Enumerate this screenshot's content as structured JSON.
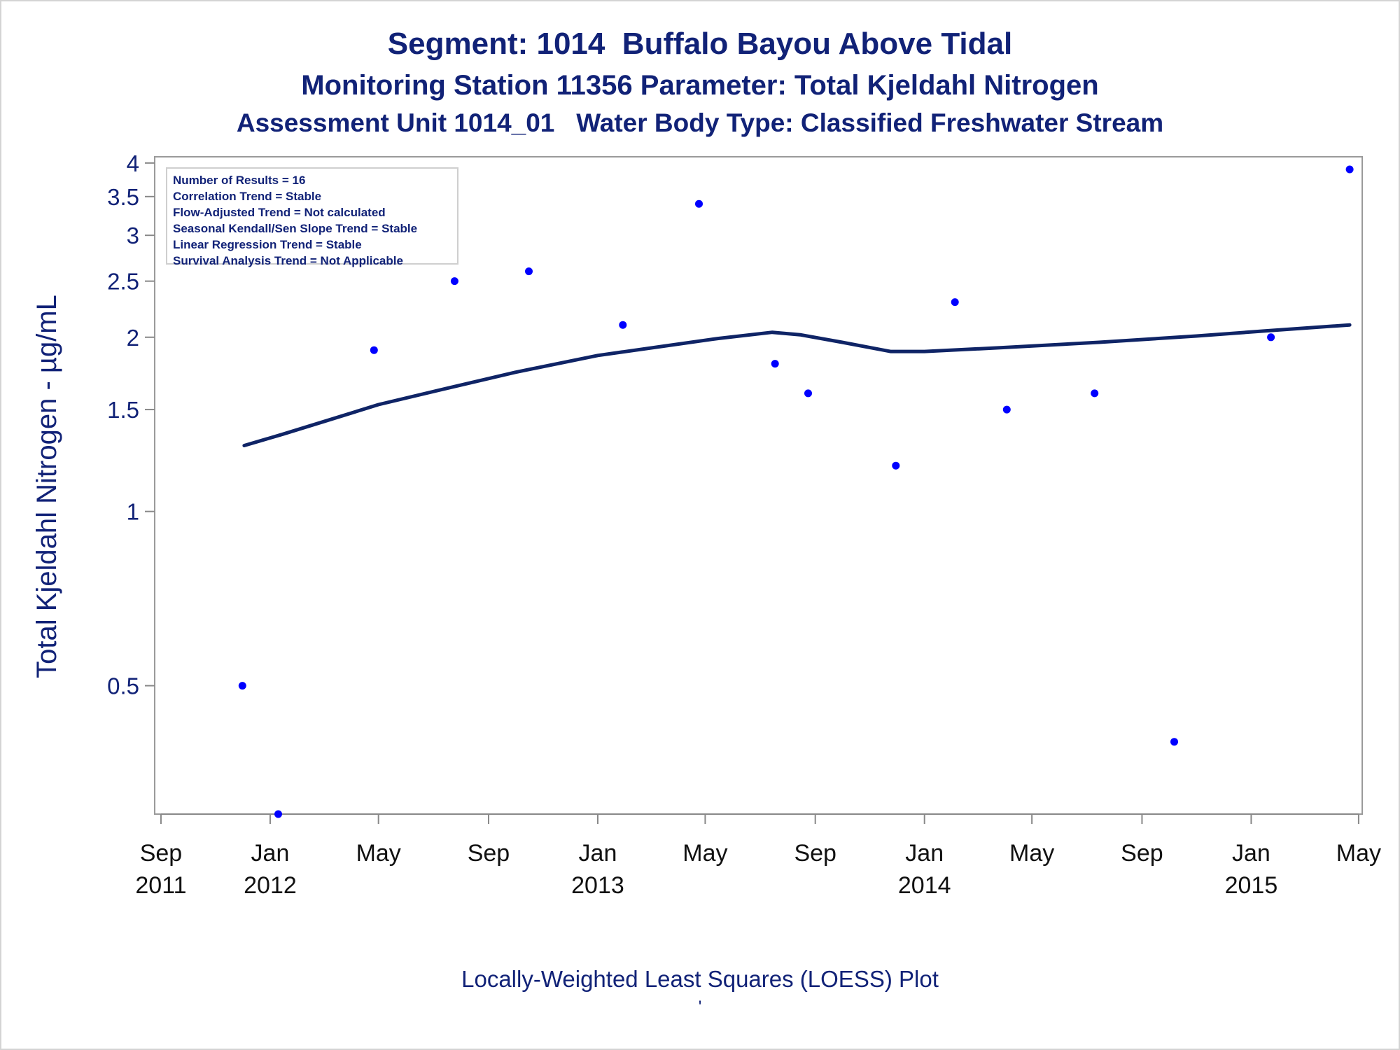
{
  "titles": {
    "line1": "Segment: 1014  Buffalo Bayou Above Tidal",
    "line2": "Monitoring Station 11356 Parameter: Total Kjeldahl Nitrogen",
    "line3": "Assessment Unit 1014_01   Water Body Type: Classified Freshwater Stream"
  },
  "stats_box": [
    "Number of Results = 16",
    "Correlation Trend = Stable",
    "Flow-Adjusted Trend = Not calculated",
    "Seasonal Kendall/Sen Slope Trend = Stable",
    "Linear Regression Trend = Stable",
    "Survival Analysis Trend = Not Applicable"
  ],
  "footnote": "Locally-Weighted Least Squares (LOESS) Plot",
  "footnote_mark": "'",
  "colors": {
    "text": "#112277",
    "points": "#0000ff",
    "line": "#0f2466",
    "axis": "#888888"
  },
  "chart_data": {
    "type": "scatter",
    "title": "Segment: 1014  Buffalo Bayou Above Tidal",
    "ylabel": "Total Kjeldahl Nitrogen -  µg/mL",
    "xlabel": "",
    "y_scale": "log",
    "ylim": [
      0.3,
      4.1
    ],
    "xlim": [
      "2011-08-25",
      "2015-05-05"
    ],
    "grid": false,
    "y_ticks": [
      0.5,
      1,
      1.5,
      2,
      2.5,
      3,
      3.5,
      4
    ],
    "y_tick_labels": [
      "0.5",
      "1",
      "1.5",
      "2",
      "2.5",
      "3",
      "3.5",
      "4"
    ],
    "x_ticks": [
      {
        "date": "2011-09-01",
        "label1": "Sep",
        "label2": "2011"
      },
      {
        "date": "2012-01-01",
        "label1": "Jan",
        "label2": "2012"
      },
      {
        "date": "2012-05-01",
        "label1": "May",
        "label2": ""
      },
      {
        "date": "2012-09-01",
        "label1": "Sep",
        "label2": ""
      },
      {
        "date": "2013-01-01",
        "label1": "Jan",
        "label2": "2013"
      },
      {
        "date": "2013-05-01",
        "label1": "May",
        "label2": ""
      },
      {
        "date": "2013-09-01",
        "label1": "Sep",
        "label2": ""
      },
      {
        "date": "2014-01-01",
        "label1": "Jan",
        "label2": "2014"
      },
      {
        "date": "2014-05-01",
        "label1": "May",
        "label2": ""
      },
      {
        "date": "2014-09-01",
        "label1": "Sep",
        "label2": ""
      },
      {
        "date": "2015-01-01",
        "label1": "Jan",
        "label2": "2015"
      },
      {
        "date": "2015-05-01",
        "label1": "May",
        "label2": ""
      }
    ],
    "points": [
      {
        "x": "2011-12-01",
        "y": 0.5
      },
      {
        "x": "2012-01-10",
        "y": 0.3
      },
      {
        "x": "2012-04-26",
        "y": 1.9
      },
      {
        "x": "2012-07-25",
        "y": 2.5
      },
      {
        "x": "2012-10-16",
        "y": 2.6
      },
      {
        "x": "2013-01-29",
        "y": 2.1
      },
      {
        "x": "2013-04-24",
        "y": 3.4
      },
      {
        "x": "2013-07-18",
        "y": 1.8
      },
      {
        "x": "2013-08-24",
        "y": 1.6
      },
      {
        "x": "2013-11-30",
        "y": 1.2
      },
      {
        "x": "2014-02-04",
        "y": 2.3
      },
      {
        "x": "2014-04-03",
        "y": 1.5
      },
      {
        "x": "2014-07-10",
        "y": 1.6
      },
      {
        "x": "2014-10-07",
        "y": 0.4
      },
      {
        "x": "2015-01-23",
        "y": 2.0
      },
      {
        "x": "2015-04-21",
        "y": 3.9
      }
    ],
    "loess": [
      {
        "x": "2011-12-03",
        "y": 1.3
      },
      {
        "x": "2012-01-15",
        "y": 1.36
      },
      {
        "x": "2012-03-01",
        "y": 1.43
      },
      {
        "x": "2012-05-01",
        "y": 1.53
      },
      {
        "x": "2012-07-15",
        "y": 1.63
      },
      {
        "x": "2012-10-01",
        "y": 1.74
      },
      {
        "x": "2013-01-01",
        "y": 1.86
      },
      {
        "x": "2013-03-15",
        "y": 1.93
      },
      {
        "x": "2013-05-15",
        "y": 1.99
      },
      {
        "x": "2013-07-15",
        "y": 2.04
      },
      {
        "x": "2013-08-15",
        "y": 2.02
      },
      {
        "x": "2013-10-01",
        "y": 1.96
      },
      {
        "x": "2013-11-24",
        "y": 1.89
      },
      {
        "x": "2014-01-01",
        "y": 1.89
      },
      {
        "x": "2014-04-01",
        "y": 1.92
      },
      {
        "x": "2014-07-15",
        "y": 1.96
      },
      {
        "x": "2014-11-01",
        "y": 2.01
      },
      {
        "x": "2015-01-15",
        "y": 2.05
      },
      {
        "x": "2015-04-21",
        "y": 2.1
      }
    ]
  }
}
